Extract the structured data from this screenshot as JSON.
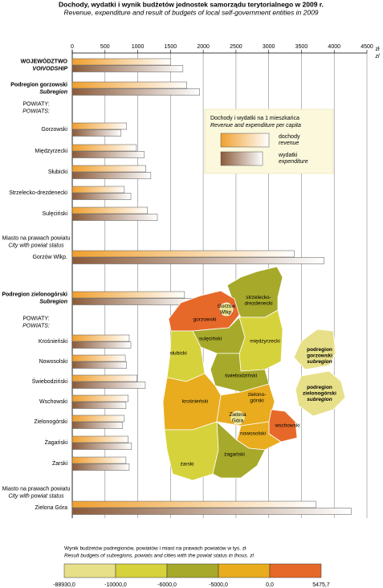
{
  "chart_data": {
    "type": "bar",
    "title": "Dochody, wydatki i wynik budżetów jednostek samorządu terytorialnego w 2009 r.",
    "subtitle": "Revenue, expenditure and result of budgets of local self-government entities in 2009",
    "x_unit": [
      "zł",
      "zl"
    ],
    "xlim": [
      0,
      4500
    ],
    "xticks": [
      0,
      500,
      1000,
      1500,
      2000,
      2500,
      3000,
      3500,
      4000,
      4500
    ],
    "grid": true,
    "categories": [
      "WOJEWÓDZTWO",
      "Podregion gorzowski",
      "POWIATY:",
      "Gorzowski",
      "Międzyrzecki",
      "Słubicki",
      "Strzelecko-drezdenecki",
      "Sulęciński",
      "Miasto na prawach powiatu",
      "Gorzów Wlkp.",
      "Podregion zielonogórski",
      "POWIATY:",
      "Krośnieński",
      "Nowosolski",
      "Świebodziński",
      "Wschowski",
      "Zielonogórski",
      "Żagański",
      "Żarski",
      "Miasto na prawach powiatu",
      "Zielona Góra"
    ],
    "categories_en": [
      "VOIVODSHIP",
      "Subregion",
      "POWIATS:",
      null,
      null,
      null,
      null,
      null,
      "City with powiat status",
      null,
      "Subregion",
      "POWIATS:",
      null,
      null,
      null,
      null,
      null,
      null,
      null,
      "City with powiat status",
      null
    ],
    "category_styles": [
      "bold",
      "bold",
      "plain",
      "plain",
      "plain",
      "plain",
      "plain",
      "plain",
      "plain",
      "plain",
      "bold",
      "plain",
      "plain",
      "plain",
      "plain",
      "plain",
      "plain",
      "plain",
      "plain",
      "plain",
      "plain"
    ],
    "series": [
      {
        "name": "dochody",
        "name_en": "revenue",
        "color": "#f0a030",
        "values": [
          1505,
          1750,
          null,
          830,
          980,
          1125,
          795,
          1150,
          null,
          3390,
          1715,
          null,
          870,
          810,
          990,
          855,
          795,
          855,
          820,
          null,
          3720
        ]
      },
      {
        "name": "wydatki",
        "name_en": "expenditure",
        "color": "#8a5a3a",
        "values": [
          1690,
          1945,
          null,
          745,
          1100,
          1200,
          895,
          1300,
          null,
          3845,
          1850,
          null,
          895,
          830,
          1115,
          820,
          770,
          905,
          870,
          null,
          4260
        ]
      }
    ],
    "legend_title": "Dochody i wydatki na 1 mieszkańca",
    "legend_title_en": "Revenue and expenditure per capita",
    "map": {
      "regions": [
        {
          "label": [
            "strzelecko-",
            "drezdenecki"
          ],
          "color": "#a7a92a"
        },
        {
          "label": [
            "gorzowski"
          ],
          "color": "#e7692a"
        },
        {
          "label": [
            "Gorzów",
            "Wlkp."
          ],
          "color": "#e8e089"
        },
        {
          "label": [
            "międzyrzecki"
          ],
          "color": "#d6d23c"
        },
        {
          "label": [
            "sulęciński"
          ],
          "color": "#a7a92a"
        },
        {
          "label": [
            "słubicki"
          ],
          "color": "#d6d23c"
        },
        {
          "label": [
            "świebodziński"
          ],
          "color": "#a7a92a"
        },
        {
          "label": [
            "krośnieński"
          ],
          "color": "#e8ac1e"
        },
        {
          "label": [
            "zielono-",
            "górski"
          ],
          "color": "#e8ac1e"
        },
        {
          "label": [
            "wschowski"
          ],
          "color": "#e7692a"
        },
        {
          "label": [
            "nowosolski"
          ],
          "color": "#e8ac1e"
        },
        {
          "label": [
            "żarski"
          ],
          "color": "#d6d23c"
        },
        {
          "label": [
            "żagański"
          ],
          "color": "#a7a92a"
        },
        {
          "label": [
            "Zielona",
            "Góra"
          ],
          "color": "#e8e089"
        },
        {
          "label": [
            "podregion",
            "gorzowski",
            "subregion"
          ],
          "color": "#e8e089"
        },
        {
          "label": [
            "podregion",
            "zielonogórski",
            "subregion"
          ],
          "color": "#e8e089"
        }
      ]
    },
    "scale": {
      "title": "Wynik budżetów podregionów, powiatów i miast na prawach powiatów w tys. zł",
      "title_en": "Result budgets of subregions, powiats and cities with the powiat status in thous. zl",
      "colors": [
        "#e8e089",
        "#d6d23c",
        "#a7a92a",
        "#e8ac1e",
        "#e7692a"
      ],
      "bounds": [
        {
          "value": -88930,
          "label": "-88930,0"
        },
        {
          "value": -10000,
          "label": "-10000,0"
        },
        {
          "value": -6000,
          "label": "-6000,0"
        },
        {
          "value": -5000,
          "label": "-5000,0"
        },
        {
          "value": 0,
          "label": "0,0"
        },
        {
          "value": 5475.7,
          "label": "5475,7"
        }
      ]
    }
  }
}
